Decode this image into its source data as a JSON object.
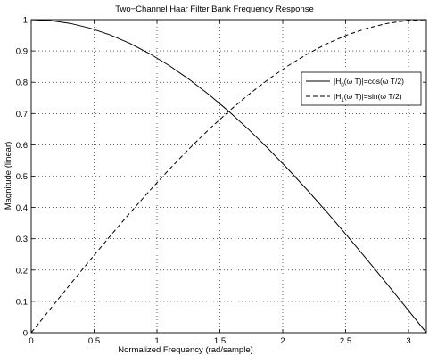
{
  "chart_data": {
    "type": "line",
    "title": "Two−Channel Haar Filter Bank Frequency Response",
    "xlabel": "Normalized Frequency (rad/sample)",
    "ylabel": "Magnitude (linear)",
    "xlim": [
      0,
      3.14159
    ],
    "ylim": [
      0,
      1
    ],
    "x_ticks": [
      0,
      0.5,
      1,
      1.5,
      2,
      2.5,
      3
    ],
    "x_tick_labels": [
      "0",
      "0.5",
      "1",
      "1.5",
      "2",
      "2.5",
      "3"
    ],
    "y_ticks": [
      0,
      0.1,
      0.2,
      0.3,
      0.4,
      0.5,
      0.6,
      0.7,
      0.8,
      0.9,
      1
    ],
    "y_tick_labels": [
      "0",
      "0.1",
      "0.2",
      "0.3",
      "0.4",
      "0.5",
      "0.6",
      "0.7",
      "0.8",
      "0.9",
      "1"
    ],
    "grid": true,
    "legend_position": "top-right",
    "x": [
      0,
      0.1571,
      0.3142,
      0.4712,
      0.6283,
      0.7854,
      0.9425,
      1.0996,
      1.2566,
      1.4137,
      1.5708,
      1.7279,
      1.885,
      2.042,
      2.1991,
      2.3562,
      2.5133,
      2.6704,
      2.8274,
      2.9845,
      3.1416
    ],
    "series": [
      {
        "name": "|H0(ω T)|=cos(ω T/2)",
        "style": "solid",
        "values": [
          1,
          0.9969,
          0.9877,
          0.9724,
          0.9511,
          0.9239,
          0.891,
          0.8526,
          0.809,
          0.7604,
          0.7071,
          0.6494,
          0.5878,
          0.5225,
          0.454,
          0.3827,
          0.309,
          0.2334,
          0.1564,
          0.0785,
          0
        ]
      },
      {
        "name": "|H1(ω T)|=sin(ω T/2)",
        "style": "dashed",
        "values": [
          0,
          0.0785,
          0.1564,
          0.2334,
          0.309,
          0.3827,
          0.454,
          0.5225,
          0.5878,
          0.6494,
          0.7071,
          0.7604,
          0.809,
          0.8526,
          0.891,
          0.9239,
          0.9511,
          0.9724,
          0.9877,
          0.9969,
          1
        ]
      }
    ]
  },
  "legend": {
    "h0": {
      "pre": "|H",
      "sub": "0",
      "post": "(ω T)|=cos(ω T/2)"
    },
    "h1": {
      "pre": "|H",
      "sub": "1",
      "post": "(ω T)|=sin(ω T/2)"
    }
  },
  "colors": {
    "line": "#000000",
    "grid": "#000000",
    "background": "#ffffff"
  }
}
